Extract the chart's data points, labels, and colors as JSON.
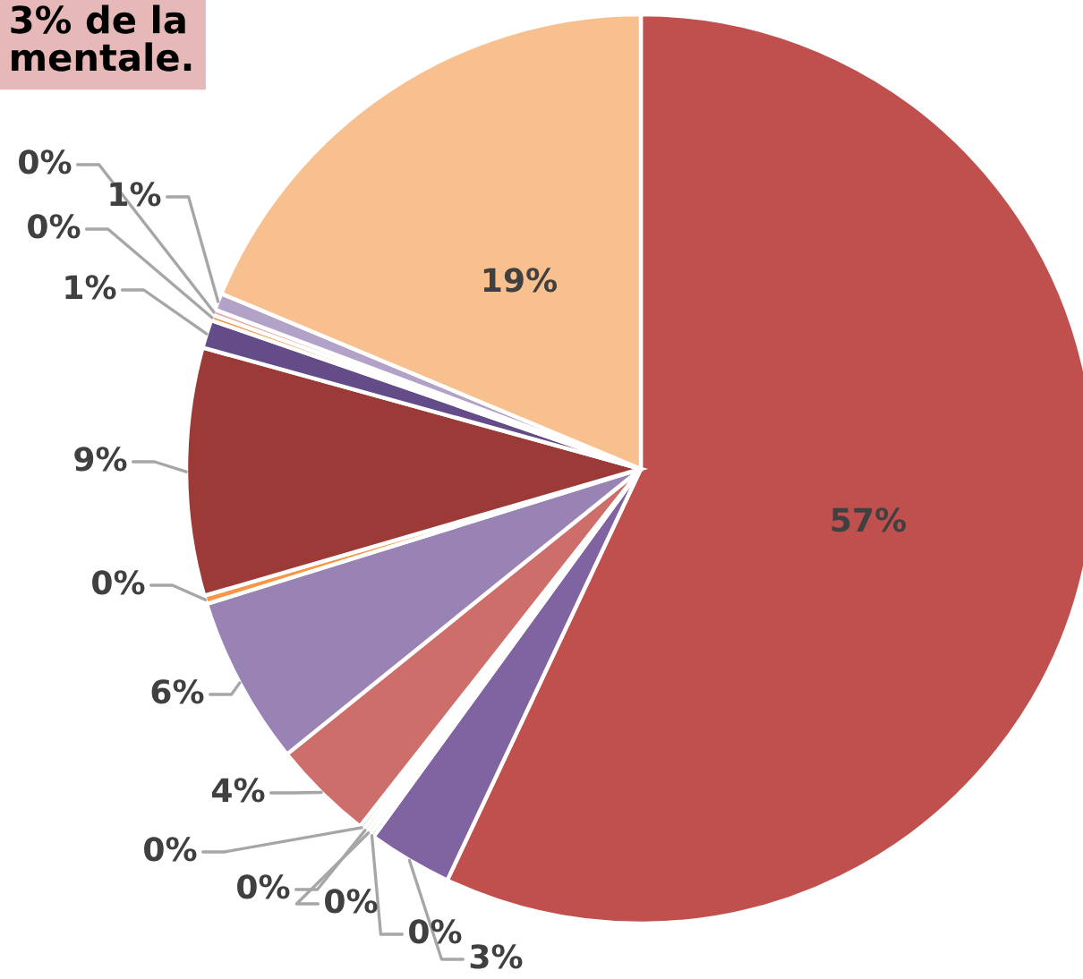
{
  "chart_data": {
    "type": "pie",
    "categories": [
      null,
      null,
      null,
      null,
      null,
      null,
      null,
      null,
      null,
      null,
      null,
      null,
      null,
      null,
      null
    ],
    "values": [
      57.0,
      3.0,
      0.15,
      0.15,
      0.15,
      0.15,
      3.6,
      6.0,
      0.3,
      8.8,
      1.0,
      0.2,
      0.2,
      0.6,
      18.7
    ],
    "value_labels": [
      "57%",
      "3%",
      "0%",
      "0%",
      "0%",
      "0%",
      "4%",
      "6%",
      "0%",
      "9%",
      "1%",
      "0%",
      "0%",
      "1%",
      "19%"
    ],
    "colors": [
      "#c0504d",
      "#8064a2",
      "#4bacc6",
      "#9bbb59",
      "#f79646",
      "#4f81bd",
      "#cd6e6b",
      "#9983b5",
      "#f79646",
      "#9c3a38",
      "#634c87",
      "#f79646",
      "#e6a09e",
      "#b3a2c7",
      "#f9c08f"
    ],
    "annotations": [
      "3% de la\nmentale."
    ]
  }
}
